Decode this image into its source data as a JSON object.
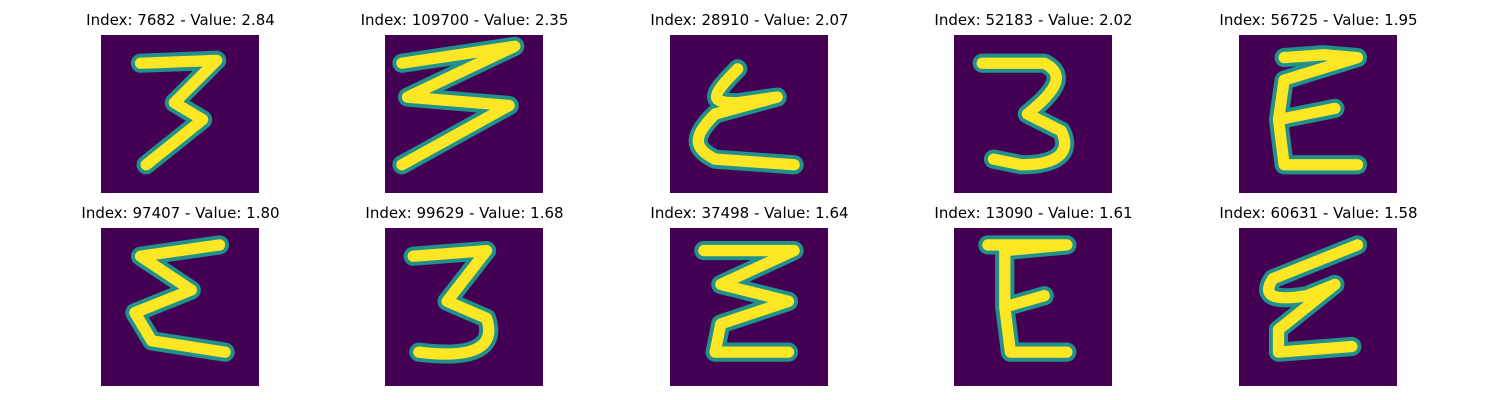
{
  "colors": {
    "background": "#440154",
    "stroke_mid": "#21918c",
    "stroke_core": "#fde725",
    "page": "#ffffff"
  },
  "panels": [
    {
      "title": "Index: 7682 - Value: 2.84",
      "glyph": "3"
    },
    {
      "title": "Index: 109700 - Value: 2.35",
      "glyph": "3"
    },
    {
      "title": "Index: 28910 - Value: 2.07",
      "glyph": "E"
    },
    {
      "title": "Index: 52183 - Value: 2.02",
      "glyph": "3"
    },
    {
      "title": "Index: 56725 - Value: 1.95",
      "glyph": "E"
    },
    {
      "title": "Index: 97407 - Value: 1.80",
      "glyph": "E"
    },
    {
      "title": "Index: 99629 - Value: 1.68",
      "glyph": "3"
    },
    {
      "title": "Index: 37498 - Value: 1.64",
      "glyph": "3"
    },
    {
      "title": "Index: 13090 - Value: 1.61",
      "glyph": "E"
    },
    {
      "title": "Index: 60631 - Value: 1.58",
      "glyph": "E"
    }
  ]
}
